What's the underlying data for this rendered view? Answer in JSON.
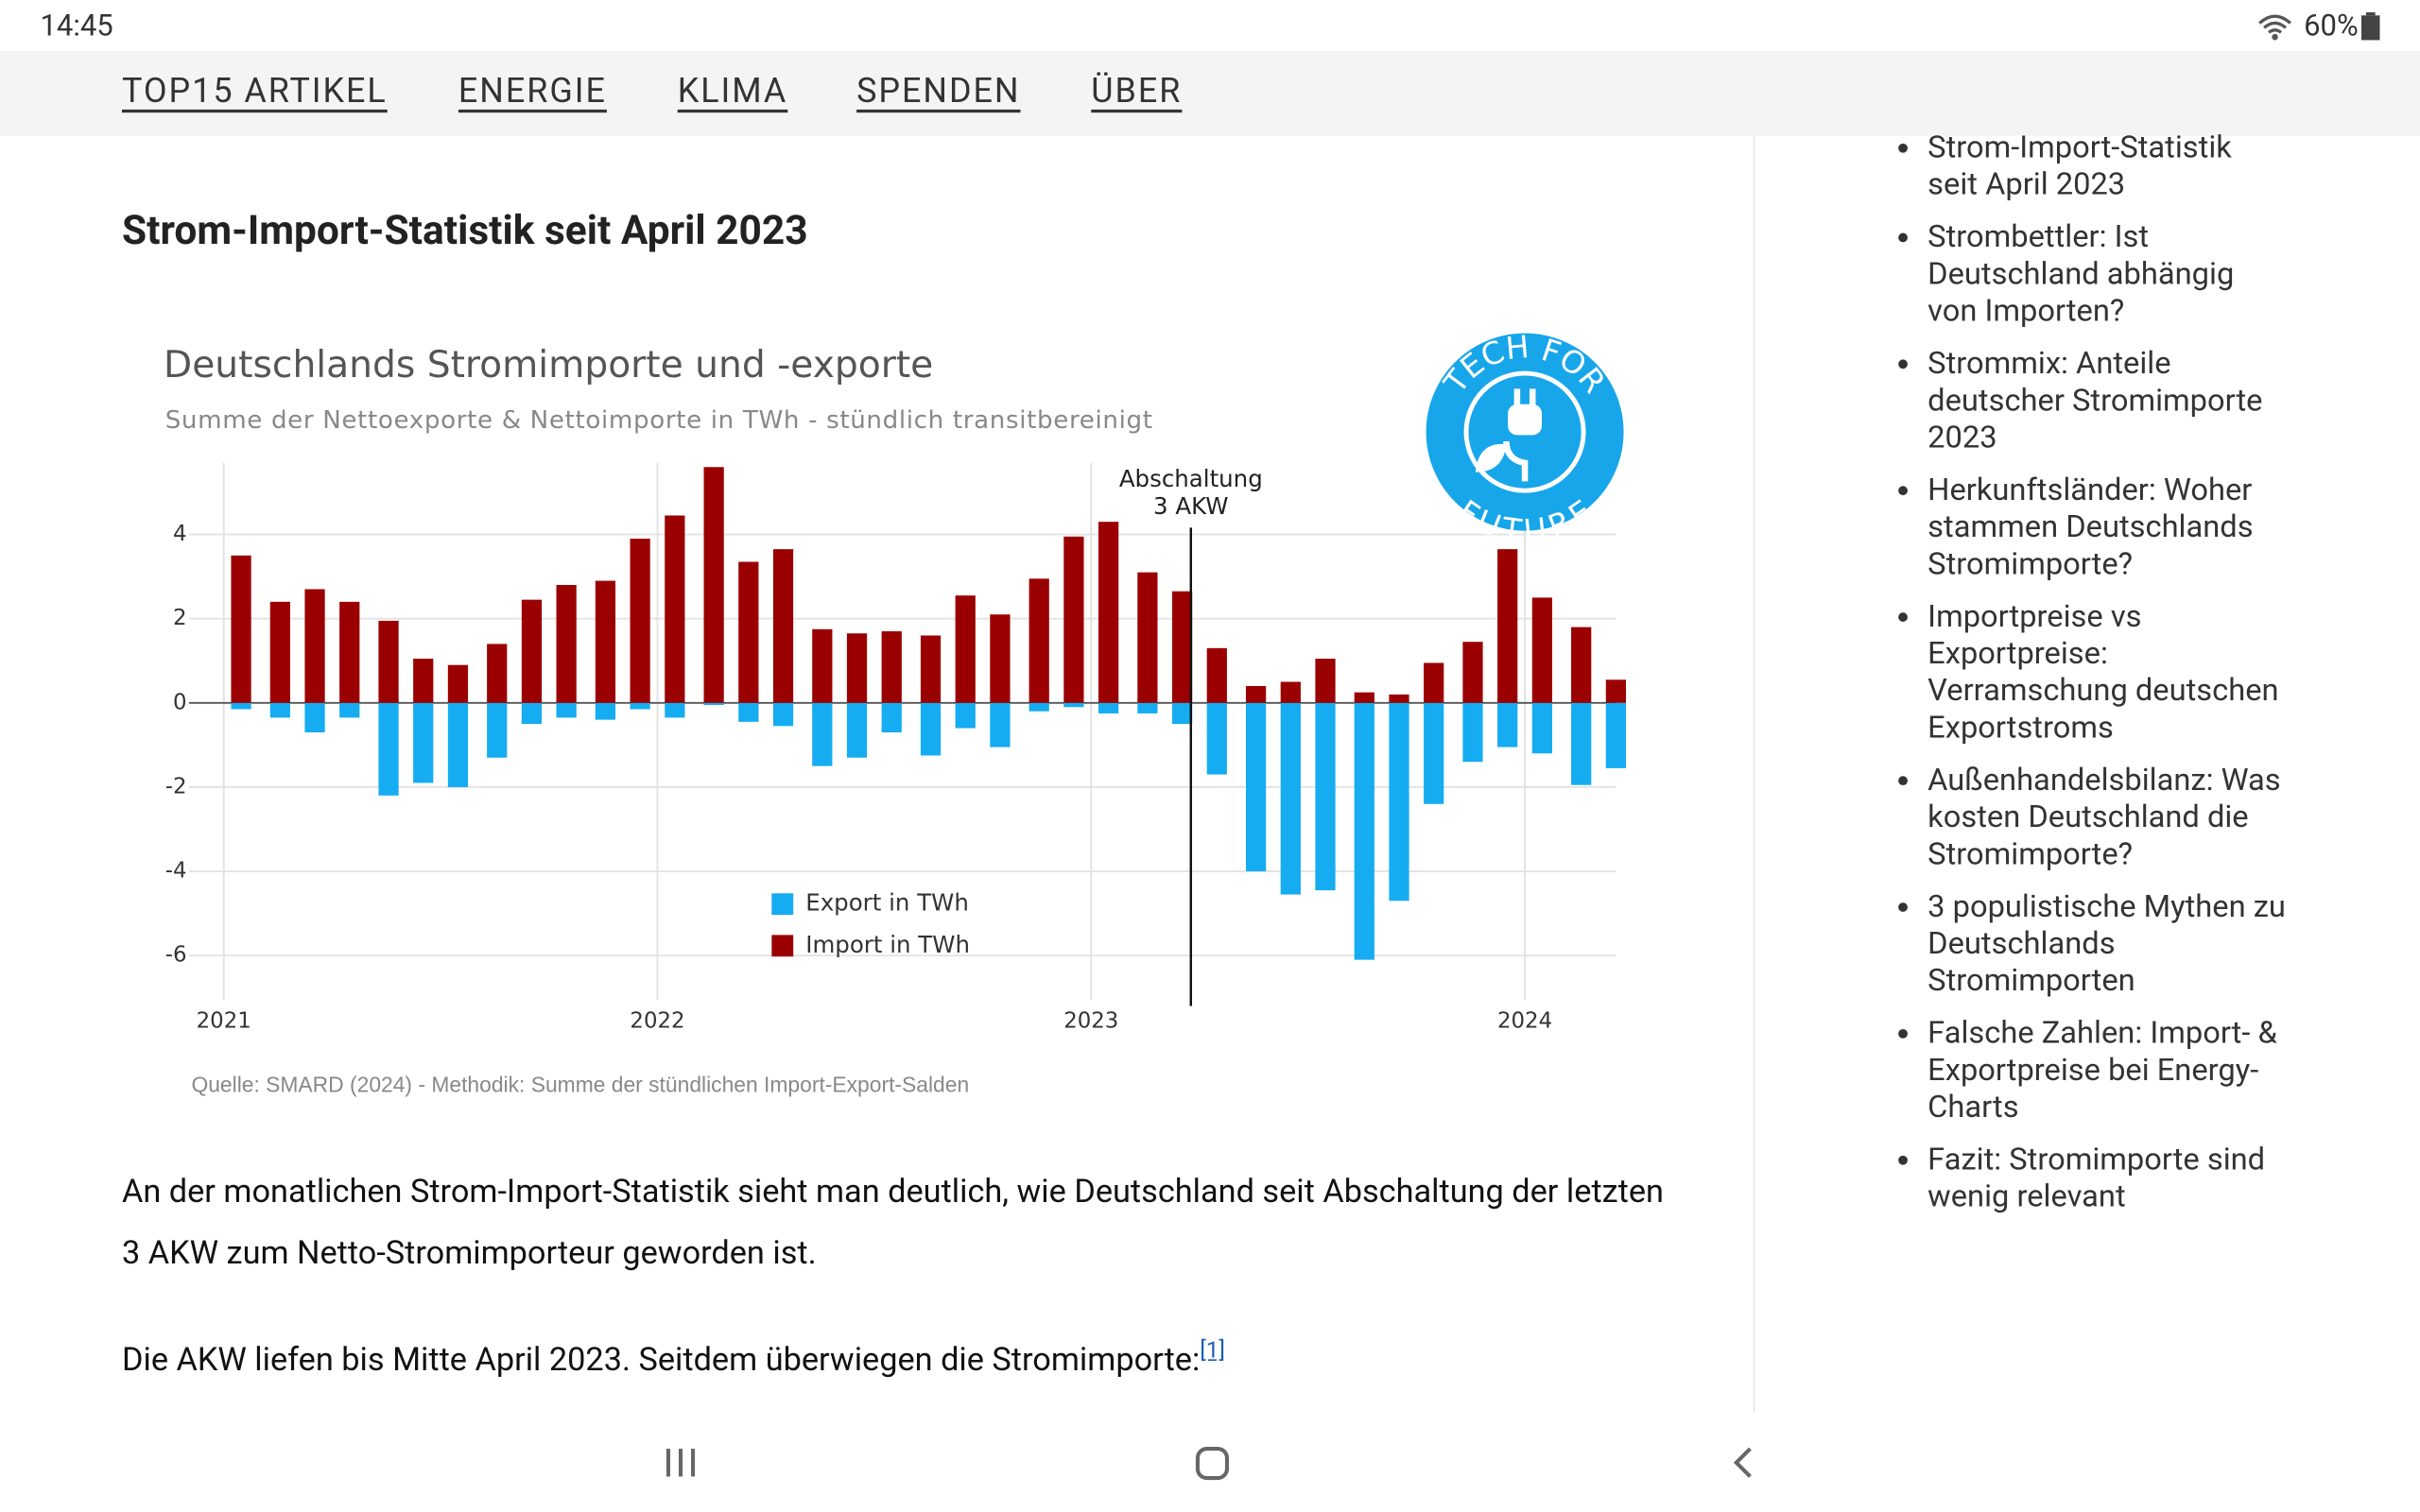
{
  "status_bar": {
    "time": "14:45",
    "battery": "60%"
  },
  "nav": [
    "TOP15 ARTIKEL",
    "ENERGIE",
    "KLIMA",
    "SPENDEN",
    "ÜBER"
  ],
  "heading": "Strom-Import-Statistik seit April 2023",
  "chart_data": {
    "type": "bar",
    "title": "Deutschlands Stromimporte und -exporte",
    "subtitle": "Summe der Nettoexporte & Nettoimporte in TWh - stündlich transitbereinigt",
    "source": "Quelle: SMARD (2024) - Methodik: Summe der stündlichen Import-Export-Salden",
    "x": [
      2021.04,
      2021.13,
      2021.21,
      2021.29,
      2021.38,
      2021.46,
      2021.54,
      2021.63,
      2021.71,
      2021.79,
      2021.88,
      2021.96,
      2022.04,
      2022.13,
      2022.21,
      2022.29,
      2022.38,
      2022.46,
      2022.54,
      2022.63,
      2022.71,
      2022.79,
      2022.88,
      2022.96,
      2023.04,
      2023.13,
      2023.21,
      2023.29,
      2023.38,
      2023.46,
      2023.54,
      2023.63,
      2023.71,
      2023.79,
      2023.88,
      2023.96,
      2024.04,
      2024.13,
      2024.21
    ],
    "series": [
      {
        "name": "Export in TWh",
        "color": "#15acf2",
        "values": [
          -0.15,
          -0.35,
          -0.7,
          -0.35,
          -2.2,
          -1.9,
          -2.0,
          -1.3,
          -0.5,
          -0.35,
          -0.4,
          -0.15,
          -0.35,
          -0.05,
          -0.45,
          -0.55,
          -1.5,
          -1.3,
          -0.7,
          -1.25,
          -0.6,
          -1.05,
          -0.2,
          -0.1,
          -0.25,
          -0.25,
          -0.5,
          -1.7,
          -4.0,
          -4.55,
          -4.45,
          -6.1,
          -4.7,
          -2.4,
          -1.4,
          -1.05,
          -1.2,
          -1.95,
          -1.55
        ]
      },
      {
        "name": "Import in TWh",
        "color": "#9b0000",
        "values": [
          3.5,
          2.4,
          2.7,
          2.4,
          1.95,
          1.05,
          0.9,
          1.4,
          2.45,
          2.8,
          2.9,
          3.9,
          4.45,
          5.6,
          3.35,
          3.65,
          1.75,
          1.65,
          1.7,
          1.6,
          2.55,
          2.1,
          2.95,
          3.95,
          4.3,
          3.1,
          2.65,
          1.3,
          0.4,
          0.5,
          1.05,
          0.25,
          0.2,
          0.95,
          1.45,
          3.65,
          2.5,
          1.8,
          0.55
        ]
      }
    ],
    "xlim": [
      2020.92,
      2024.21
    ],
    "xticks": [
      2021,
      2022,
      2023,
      2024
    ],
    "ylim": [
      -7.05,
      5.7
    ],
    "yticks": [
      -6,
      -4,
      -2,
      0,
      2,
      4
    ],
    "grid": true,
    "legend": "bottom",
    "annotation": {
      "text": [
        "Abschaltung",
        "3 AKW"
      ],
      "x": 2023.23
    },
    "logo": {
      "top": "TECH FOR",
      "bottom": "FUTURE"
    }
  },
  "paragraphs": [
    "An der monatlichen Strom-Import-Statistik sieht man deutlich, wie Deutschland seit Abschaltung der letzten 3 AKW zum Netto-Stromimporteur geworden ist.",
    "Die AKW liefen bis Mitte April 2023. Seitdem überwiegen die Stromimporte:"
  ],
  "footnote": "[1]",
  "sidebar": [
    "Strom-Import-Statistik seit April 2023",
    "Strombettler: Ist Deutschland abhängig von Importen?",
    "Strommix: Anteile deutscher Stromimporte 2023",
    "Herkunftsländer: Woher stammen Deutschlands Stromimporte?",
    "Importpreise vs Exportpreise: Verramschung deutschen Exportstroms",
    "Außenhandelsbilanz: Was kosten Deutschland die Stromimporte?",
    "3 populistische Mythen zu Deutschlands Stromimporten",
    "Falsche Zahlen: Import- & Exportpreise bei Energy-Charts",
    "Fazit: Stromimporte sind wenig relevant"
  ]
}
